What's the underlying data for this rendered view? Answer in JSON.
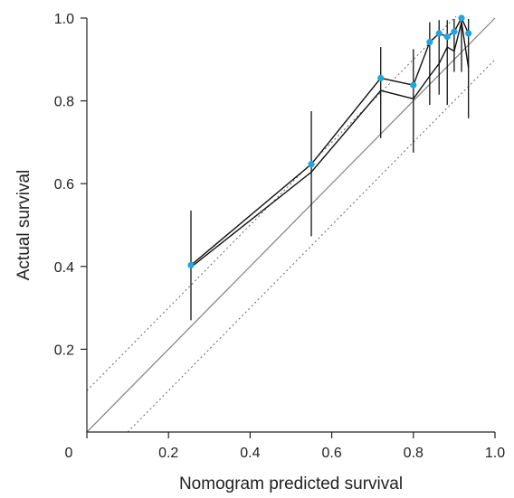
{
  "chart_data": {
    "type": "line",
    "xlabel": "Nomogram predicted survival",
    "ylabel": "Actual survival",
    "xlim": [
      0,
      1.0
    ],
    "ylim": [
      0,
      1.0
    ],
    "x_ticks": [
      "0",
      "0.2",
      "0.4",
      "0.6",
      "0.8",
      "1.0"
    ],
    "y_ticks": [
      "0.2",
      "0.4",
      "0.6",
      "0.8",
      "1.0"
    ],
    "x_tick_values": [
      0,
      0.2,
      0.4,
      0.6,
      0.8,
      1.0
    ],
    "y_tick_values": [
      0.2,
      0.4,
      0.6,
      0.8,
      1.0
    ],
    "grid": false,
    "points": [
      {
        "x": 0.255,
        "y": 0.403,
        "lower": 0.27,
        "upper": 0.535
      },
      {
        "x": 0.55,
        "y": 0.647,
        "lower": 0.473,
        "upper": 0.775
      },
      {
        "x": 0.72,
        "y": 0.855,
        "lower": 0.71,
        "upper": 0.93
      },
      {
        "x": 0.8,
        "y": 0.838,
        "lower": 0.675,
        "upper": 0.925
      },
      {
        "x": 0.84,
        "y": 0.942,
        "lower": 0.79,
        "upper": 0.99
      },
      {
        "x": 0.863,
        "y": 0.963,
        "lower": 0.815,
        "upper": 0.995
      },
      {
        "x": 0.883,
        "y": 0.955,
        "lower": 0.79,
        "upper": 0.995
      },
      {
        "x": 0.9,
        "y": 0.967,
        "lower": 0.87,
        "upper": 0.998
      },
      {
        "x": 0.918,
        "y": 1.0,
        "lower": 0.87,
        "upper": 1.0
      },
      {
        "x": 0.935,
        "y": 0.963,
        "lower": 0.758,
        "upper": 0.998
      }
    ],
    "second_curve": [
      {
        "x": 0.255,
        "y": 0.398
      },
      {
        "x": 0.55,
        "y": 0.628
      },
      {
        "x": 0.72,
        "y": 0.825
      },
      {
        "x": 0.8,
        "y": 0.805
      },
      {
        "x": 0.84,
        "y": 0.86
      },
      {
        "x": 0.863,
        "y": 0.89
      },
      {
        "x": 0.883,
        "y": 0.93
      },
      {
        "x": 0.9,
        "y": 0.92
      },
      {
        "x": 0.918,
        "y": 0.99
      },
      {
        "x": 0.935,
        "y": 0.88
      }
    ],
    "reference_line": {
      "slope": 1,
      "intercept": 0
    },
    "tolerance_offset": 0.1,
    "colors": {
      "point": "#1fa5e0",
      "curve": "#111111",
      "error_bar": "#111111",
      "reference": "#808080",
      "tolerance": "#666666",
      "axis": "#222222"
    }
  }
}
